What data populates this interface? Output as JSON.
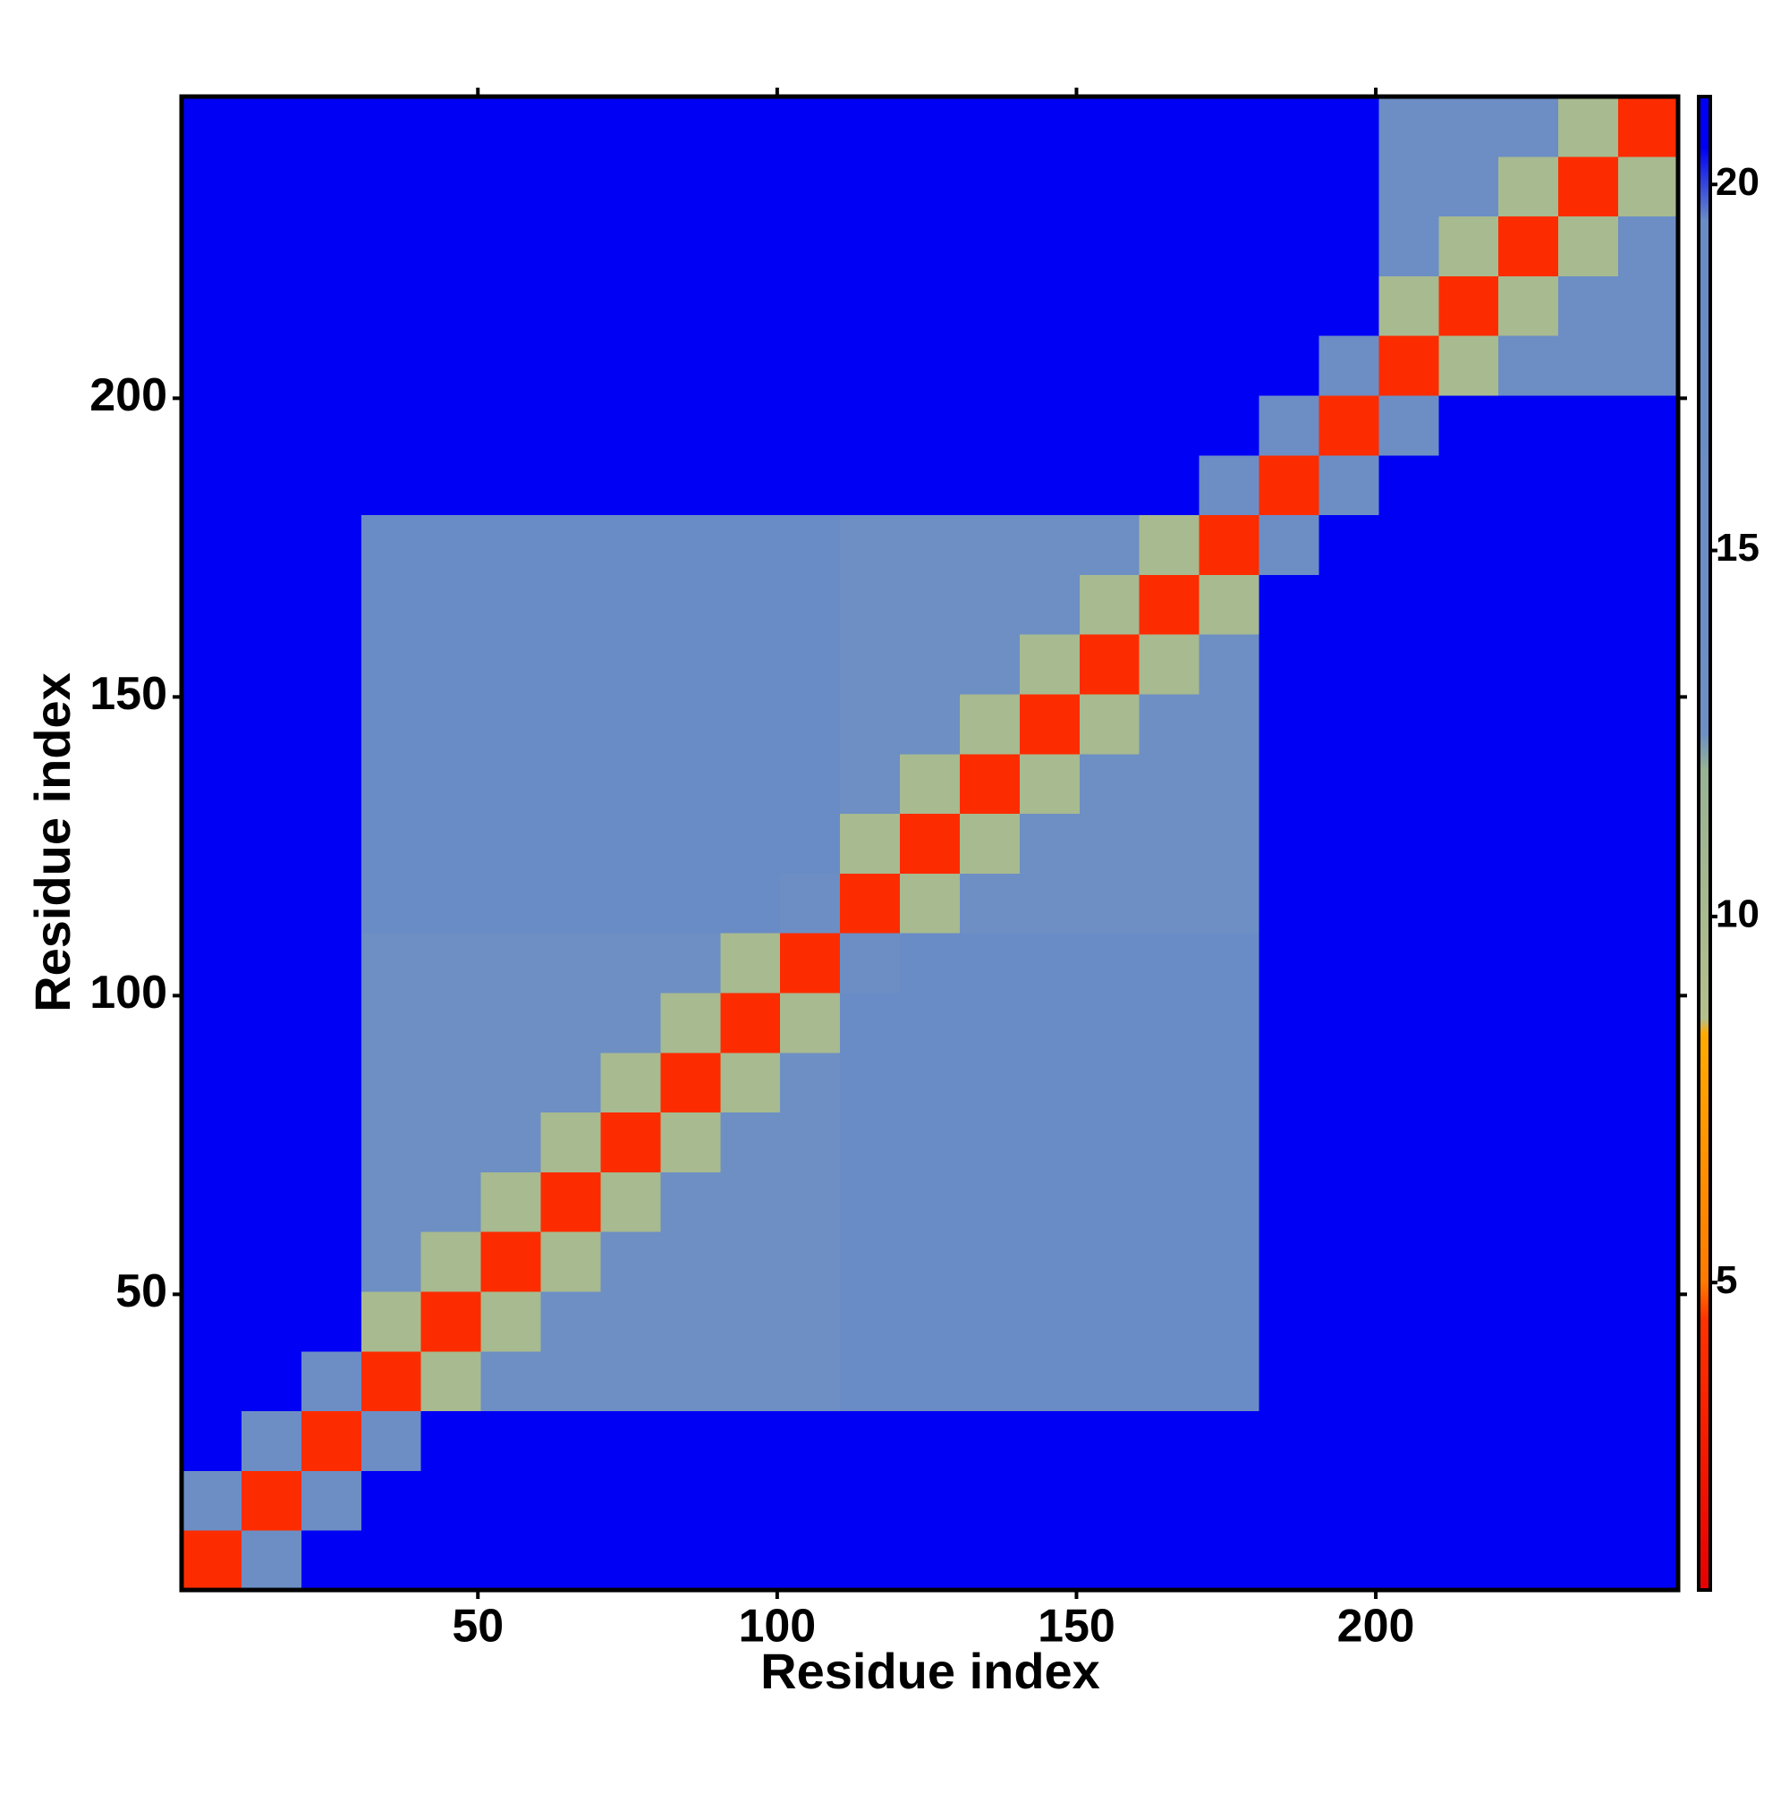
{
  "chart_data": {
    "type": "heatmap",
    "x_label": "Residue index",
    "y_label": "Residue index",
    "xlim": [
      0.5,
      250.5
    ],
    "ylim": [
      0.5,
      250.5
    ],
    "xticks": [
      50,
      100,
      150,
      200
    ],
    "yticks": [
      50,
      100,
      150,
      200
    ],
    "bin_width": 10,
    "zlim": [
      0.8,
      21.2
    ],
    "zticks": [
      5,
      10,
      15,
      20
    ],
    "colorscale": [
      [
        0.8,
        "#e60000"
      ],
      [
        4.5,
        "#ff3300"
      ],
      [
        5,
        "#ff7a00"
      ],
      [
        8.4,
        "#ffaa00"
      ],
      [
        8.6,
        "#b4bf8c"
      ],
      [
        12,
        "#98b294"
      ],
      [
        12.5,
        "#6d8fc4"
      ],
      [
        19.5,
        "#6a8cc6"
      ],
      [
        20.5,
        "#0000f5"
      ],
      [
        21.2,
        "#0000f5"
      ]
    ],
    "z": [
      [
        4,
        15,
        21,
        21,
        21,
        21,
        21,
        21,
        21,
        21,
        21,
        21,
        21,
        21,
        21,
        21,
        21,
        21,
        21,
        21,
        21,
        21,
        21,
        21,
        21
      ],
      [
        15,
        4,
        15,
        21,
        21,
        21,
        21,
        21,
        21,
        21,
        21,
        21,
        21,
        21,
        21,
        21,
        21,
        21,
        21,
        21,
        21,
        21,
        21,
        21,
        21
      ],
      [
        21,
        15,
        4,
        15,
        21,
        21,
        21,
        21,
        21,
        21,
        21,
        21,
        21,
        21,
        21,
        21,
        21,
        21,
        21,
        21,
        21,
        21,
        21,
        21,
        21
      ],
      [
        21,
        21,
        15,
        4,
        10,
        13,
        13,
        13,
        13,
        13,
        13,
        19,
        19,
        19,
        19,
        19,
        19,
        19,
        21,
        21,
        21,
        21,
        21,
        21,
        21
      ],
      [
        21,
        21,
        21,
        10,
        4,
        10,
        13,
        13,
        13,
        13,
        13,
        19,
        19,
        19,
        19,
        19,
        19,
        19,
        21,
        21,
        21,
        21,
        21,
        21,
        21
      ],
      [
        21,
        21,
        21,
        13,
        10,
        4,
        10,
        13,
        13,
        13,
        13,
        19,
        19,
        19,
        19,
        19,
        19,
        19,
        21,
        21,
        21,
        21,
        21,
        21,
        21
      ],
      [
        21,
        21,
        21,
        13,
        13,
        10,
        4,
        10,
        13,
        13,
        13,
        19,
        19,
        19,
        19,
        19,
        19,
        19,
        21,
        21,
        21,
        21,
        21,
        21,
        21
      ],
      [
        21,
        21,
        21,
        13,
        13,
        13,
        10,
        4,
        10,
        13,
        13,
        19,
        19,
        19,
        19,
        19,
        19,
        19,
        21,
        21,
        21,
        21,
        21,
        21,
        21
      ],
      [
        21,
        21,
        21,
        13,
        13,
        13,
        13,
        10,
        4,
        10,
        13,
        19,
        19,
        19,
        19,
        19,
        19,
        19,
        21,
        21,
        21,
        21,
        21,
        21,
        21
      ],
      [
        21,
        21,
        21,
        13,
        13,
        13,
        13,
        13,
        10,
        4,
        10,
        19,
        19,
        19,
        19,
        19,
        19,
        19,
        21,
        21,
        21,
        21,
        21,
        21,
        21
      ],
      [
        21,
        21,
        21,
        13,
        13,
        13,
        13,
        13,
        13,
        10,
        4,
        15,
        19,
        19,
        19,
        19,
        19,
        19,
        21,
        21,
        21,
        21,
        21,
        21,
        21
      ],
      [
        21,
        21,
        21,
        19,
        19,
        19,
        19,
        19,
        19,
        19,
        15,
        4,
        10,
        13,
        13,
        13,
        13,
        13,
        21,
        21,
        21,
        21,
        21,
        21,
        21
      ],
      [
        21,
        21,
        21,
        19,
        19,
        19,
        19,
        19,
        19,
        19,
        19,
        10,
        4,
        10,
        13,
        13,
        13,
        13,
        21,
        21,
        21,
        21,
        21,
        21,
        21
      ],
      [
        21,
        21,
        21,
        19,
        19,
        19,
        19,
        19,
        19,
        19,
        19,
        13,
        10,
        4,
        10,
        13,
        13,
        13,
        21,
        21,
        21,
        21,
        21,
        21,
        21
      ],
      [
        21,
        21,
        21,
        19,
        19,
        19,
        19,
        19,
        19,
        19,
        19,
        13,
        13,
        10,
        4,
        10,
        13,
        13,
        21,
        21,
        21,
        21,
        21,
        21,
        21
      ],
      [
        21,
        21,
        21,
        19,
        19,
        19,
        19,
        19,
        19,
        19,
        19,
        13,
        13,
        13,
        10,
        4,
        10,
        13,
        21,
        21,
        21,
        21,
        21,
        21,
        21
      ],
      [
        21,
        21,
        21,
        19,
        19,
        19,
        19,
        19,
        19,
        19,
        19,
        13,
        13,
        13,
        13,
        10,
        4,
        10,
        21,
        21,
        21,
        21,
        21,
        21,
        21
      ],
      [
        21,
        21,
        21,
        19,
        19,
        19,
        19,
        19,
        19,
        19,
        19,
        13,
        13,
        13,
        13,
        13,
        10,
        4,
        15,
        21,
        21,
        21,
        21,
        21,
        21
      ],
      [
        21,
        21,
        21,
        21,
        21,
        21,
        21,
        21,
        21,
        21,
        21,
        21,
        21,
        21,
        21,
        21,
        21,
        15,
        4,
        15,
        21,
        21,
        21,
        21,
        21
      ],
      [
        21,
        21,
        21,
        21,
        21,
        21,
        21,
        21,
        21,
        21,
        21,
        21,
        21,
        21,
        21,
        21,
        21,
        21,
        15,
        4,
        15,
        21,
        21,
        21,
        21
      ],
      [
        21,
        21,
        21,
        21,
        21,
        21,
        21,
        21,
        21,
        21,
        21,
        21,
        21,
        21,
        21,
        21,
        21,
        21,
        21,
        15,
        4,
        10,
        16,
        16,
        16
      ],
      [
        21,
        21,
        21,
        21,
        21,
        21,
        21,
        21,
        21,
        21,
        21,
        21,
        21,
        21,
        21,
        21,
        21,
        21,
        21,
        21,
        10,
        4,
        10,
        16,
        16
      ],
      [
        21,
        21,
        21,
        21,
        21,
        21,
        21,
        21,
        21,
        21,
        21,
        21,
        21,
        21,
        21,
        21,
        21,
        21,
        21,
        21,
        16,
        10,
        4,
        10,
        16
      ],
      [
        21,
        21,
        21,
        21,
        21,
        21,
        21,
        21,
        21,
        21,
        21,
        21,
        21,
        21,
        21,
        21,
        21,
        21,
        21,
        21,
        16,
        16,
        10,
        4,
        10
      ],
      [
        21,
        21,
        21,
        21,
        21,
        21,
        21,
        21,
        21,
        21,
        21,
        21,
        21,
        21,
        21,
        21,
        21,
        21,
        21,
        21,
        16,
        16,
        16,
        10,
        4
      ]
    ]
  }
}
